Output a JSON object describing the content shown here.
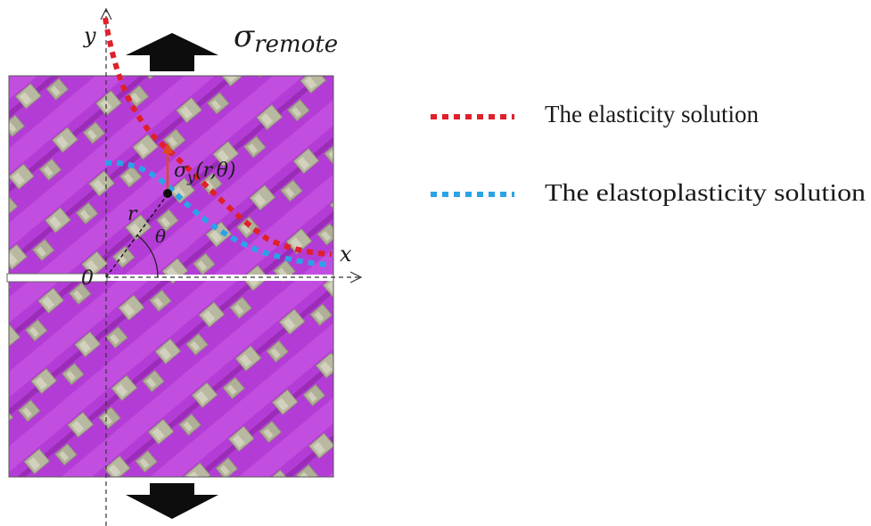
{
  "diagram": {
    "remote_stress": {
      "symbol": "σ",
      "subscript": "remote"
    },
    "axes": {
      "x_label": "x",
      "y_label": "y",
      "origin_label": "0"
    },
    "local_stress": {
      "symbol": "σ",
      "subscript": "y",
      "arguments": "(r,θ)"
    },
    "radius_label": "r",
    "angle_label": "θ",
    "colors": {
      "plate": "#b43cd6",
      "plate_band": "#c24ee0",
      "tow": "#b9b8a0",
      "elasticity": "#e0202a",
      "elastoplasticity": "#2aa3e8",
      "arrow": "#0d0d0d",
      "local_stress_arrow": "#e04a1a"
    }
  },
  "legend": [
    {
      "label": "The elasticity solution",
      "color": "#e0202a"
    },
    {
      "label": "The elastoplasticity solution",
      "color": "#2aa3e8"
    }
  ]
}
